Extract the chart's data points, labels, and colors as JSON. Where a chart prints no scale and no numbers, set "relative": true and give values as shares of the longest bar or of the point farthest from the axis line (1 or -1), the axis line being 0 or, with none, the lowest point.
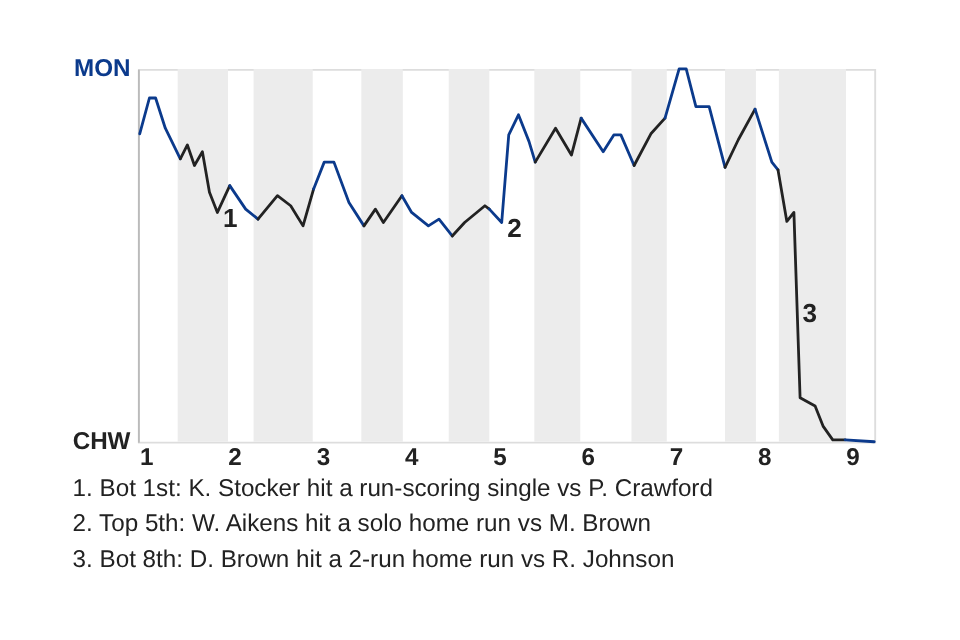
{
  "chart_data": {
    "type": "line",
    "relative": true,
    "series": [
      {
        "name": "MON",
        "color": "#0b3a8c",
        "x": [
          0.93,
          1.04,
          1.11,
          1.22,
          1.39
        ],
        "values": [
          0.826,
          0.922,
          0.922,
          0.841,
          0.759
        ]
      },
      {
        "name": "CHW",
        "color": "#222222",
        "x": [
          1.39,
          1.47,
          1.55,
          1.64,
          1.72,
          1.81,
          1.95
        ],
        "values": [
          0.759,
          0.796,
          0.741,
          0.778,
          0.669,
          0.615,
          0.687
        ]
      },
      {
        "color": "#0b3a8c",
        "x": [
          1.95,
          2.13,
          2.27
        ],
        "values": [
          0.687,
          0.624,
          0.597
        ]
      },
      {
        "color": "#222222",
        "x": [
          2.27,
          2.49,
          2.64,
          2.78,
          2.9
        ],
        "values": [
          0.597,
          0.66,
          0.633,
          0.579,
          0.678
        ]
      },
      {
        "color": "#0b3a8c",
        "x": [
          2.9,
          3.02,
          3.13,
          3.3,
          3.47
        ],
        "values": [
          0.678,
          0.75,
          0.75,
          0.642,
          0.579
        ]
      },
      {
        "color": "#222222",
        "x": [
          3.47,
          3.6,
          3.69,
          3.9
        ],
        "values": [
          0.579,
          0.624,
          0.588,
          0.66
        ]
      },
      {
        "color": "#0b3a8c",
        "x": [
          3.9,
          4.01,
          4.2,
          4.32,
          4.47
        ],
        "values": [
          0.66,
          0.615,
          0.579,
          0.597,
          0.552
        ]
      },
      {
        "color": "#222222",
        "x": [
          4.47,
          4.61,
          4.84,
          4.89
        ],
        "values": [
          0.552,
          0.588,
          0.633,
          0.624
        ]
      },
      {
        "color": "#0b3a8c",
        "x": [
          4.89,
          5.03,
          5.11,
          5.22,
          5.34,
          5.41
        ],
        "values": [
          0.624,
          0.588,
          0.823,
          0.877,
          0.805,
          0.75
        ]
      },
      {
        "color": "#222222",
        "x": [
          5.41,
          5.64,
          5.82,
          5.93
        ],
        "values": [
          0.75,
          0.841,
          0.769,
          0.868
        ]
      },
      {
        "color": "#0b3a8c",
        "x": [
          5.93,
          6.18,
          6.3,
          6.38,
          6.53
        ],
        "values": [
          0.868,
          0.778,
          0.823,
          0.823,
          0.741
        ]
      },
      {
        "color": "#222222",
        "x": [
          6.53,
          6.72,
          6.88
        ],
        "values": [
          0.741,
          0.826,
          0.868
        ]
      },
      {
        "color": "#0b3a8c",
        "x": [
          6.88,
          7.04,
          7.12,
          7.23,
          7.38,
          7.56
        ],
        "values": [
          0.868,
          1,
          1,
          0.899,
          0.899,
          0.736
        ]
      },
      {
        "color": "#222222",
        "x": [
          7.56,
          7.71,
          7.9
        ],
        "values": [
          0.736,
          0.81,
          0.892
        ]
      },
      {
        "color": "#0b3a8c",
        "x": [
          7.9,
          8.09,
          8.16
        ],
        "values": [
          0.892,
          0.75,
          0.729
        ]
      },
      {
        "color": "#222222",
        "x": [
          8.16,
          8.26,
          8.34,
          8.41,
          8.58,
          8.67,
          8.78,
          8.92
        ],
        "values": [
          0.729,
          0.591,
          0.615,
          0.118,
          0.096,
          0.042,
          0.005,
          0.005
        ]
      },
      {
        "color": "#0b3a8c",
        "x": [
          8.92,
          9.25
        ],
        "values": [
          0.005,
          0
        ]
      }
    ],
    "xlim": [
      0.91,
      9.25
    ],
    "xticks": [
      1,
      2,
      3,
      4,
      5,
      6,
      7,
      8,
      9
    ],
    "legend": "left",
    "line_style": "solid",
    "tick_labels": "x",
    "bands": [
      {
        "axis": "x",
        "from": 1.36,
        "to": 1.93,
        "color": "#ececec"
      },
      {
        "axis": "x",
        "from": 2.22,
        "to": 2.89,
        "color": "#ececec"
      },
      {
        "axis": "x",
        "from": 3.44,
        "to": 3.91,
        "color": "#ececec"
      },
      {
        "axis": "x",
        "from": 4.43,
        "to": 4.89,
        "color": "#ececec"
      },
      {
        "axis": "x",
        "from": 5.4,
        "to": 5.92,
        "color": "#ececec"
      },
      {
        "axis": "x",
        "from": 6.5,
        "to": 6.9,
        "color": "#ececec"
      },
      {
        "axis": "x",
        "from": 7.56,
        "to": 7.91,
        "color": "#ececec"
      },
      {
        "axis": "x",
        "from": 8.17,
        "to": 8.93,
        "color": "#ececec"
      }
    ],
    "annotations": [
      {
        "text": "1",
        "x": 1.81,
        "y": 0.615
      },
      {
        "text": "2",
        "x": 5.03,
        "y": 0.588
      },
      {
        "text": "3",
        "x": 8.375,
        "y": 0.362
      },
      "1. Bot 1st: K. Stocker hit a run-scoring single vs P. Crawford",
      "2. Top 5th: W. Aikens hit a solo home run vs M. Brown",
      "3. Bot 8th: D. Brown hit a 2-run home run vs R. Johnson"
    ]
  }
}
